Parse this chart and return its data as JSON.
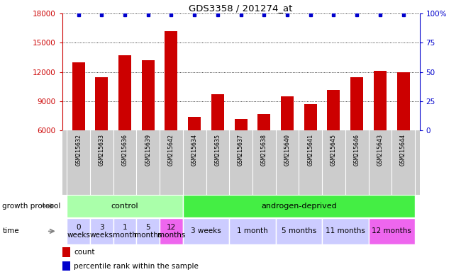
{
  "title": "GDS3358 / 201274_at",
  "samples": [
    "GSM215632",
    "GSM215633",
    "GSM215636",
    "GSM215639",
    "GSM215642",
    "GSM215634",
    "GSM215635",
    "GSM215637",
    "GSM215638",
    "GSM215640",
    "GSM215641",
    "GSM215645",
    "GSM215646",
    "GSM215643",
    "GSM215644"
  ],
  "counts": [
    13000,
    11500,
    13700,
    13200,
    16200,
    7400,
    9700,
    7200,
    7700,
    9500,
    8700,
    10200,
    11500,
    12100,
    12000
  ],
  "percentile_ranks": [
    99,
    99,
    99,
    99,
    99,
    99,
    99,
    99,
    99,
    99,
    99,
    99,
    99,
    99,
    99
  ],
  "ylim": [
    6000,
    18000
  ],
  "yticks_left": [
    6000,
    9000,
    12000,
    15000,
    18000
  ],
  "yticks_right": [
    0,
    25,
    50,
    75,
    100
  ],
  "bar_color": "#cc0000",
  "dot_color": "#0000cc",
  "background_color": "#ffffff",
  "sample_label_bg": "#cccccc",
  "protocol_groups": [
    {
      "label": "control",
      "start": 0,
      "end": 5,
      "color": "#aaffaa"
    },
    {
      "label": "androgen-deprived",
      "start": 5,
      "end": 15,
      "color": "#44ee44"
    }
  ],
  "time_groups": [
    {
      "label": "0\nweeks",
      "start": 0,
      "end": 1,
      "color": "#ccccff"
    },
    {
      "label": "3\nweeks",
      "start": 1,
      "end": 2,
      "color": "#ccccff"
    },
    {
      "label": "1\nmonth",
      "start": 2,
      "end": 3,
      "color": "#ccccff"
    },
    {
      "label": "5\nmonths",
      "start": 3,
      "end": 4,
      "color": "#ccccff"
    },
    {
      "label": "12\nmonths",
      "start": 4,
      "end": 5,
      "color": "#ee66ee"
    },
    {
      "label": "3 weeks",
      "start": 5,
      "end": 7,
      "color": "#ccccff"
    },
    {
      "label": "1 month",
      "start": 7,
      "end": 9,
      "color": "#ccccff"
    },
    {
      "label": "5 months",
      "start": 9,
      "end": 11,
      "color": "#ccccff"
    },
    {
      "label": "11 months",
      "start": 11,
      "end": 13,
      "color": "#ccccff"
    },
    {
      "label": "12 months",
      "start": 13,
      "end": 15,
      "color": "#ee66ee"
    }
  ],
  "growth_protocol_label": "growth protocol",
  "time_label": "time",
  "legend_count_label": "count",
  "legend_percentile_label": "percentile rank within the sample"
}
